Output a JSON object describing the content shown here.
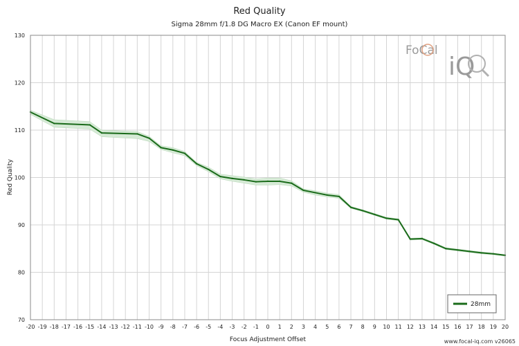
{
  "chart_data": {
    "type": "line",
    "title": "Red Quality",
    "subtitle": "Sigma 28mm f/1.8 DG Macro EX (Canon EF mount)",
    "xlabel": "Focus Adjustment Offset",
    "ylabel": "Red Quality",
    "xlim": [
      -20,
      20
    ],
    "ylim": [
      70,
      130
    ],
    "yticks": [
      70,
      80,
      90,
      100,
      110,
      120,
      130
    ],
    "xticks": [
      -20,
      -19,
      -18,
      -17,
      -16,
      -15,
      -14,
      -13,
      -12,
      -11,
      -10,
      -9,
      -8,
      -7,
      -6,
      -5,
      -4,
      -3,
      -2,
      -1,
      0,
      1,
      2,
      3,
      4,
      5,
      6,
      7,
      8,
      9,
      10,
      11,
      12,
      13,
      14,
      15,
      16,
      17,
      18,
      19,
      20
    ],
    "grid": true,
    "legend_position": "bottom-right",
    "series": [
      {
        "name": "28mm",
        "color": "#1a6b1a",
        "band_color": "#d6ead6",
        "x": [
          -20,
          -18,
          -15,
          -14,
          -11,
          -10,
          -9,
          -8,
          -7,
          -6,
          -5,
          -4,
          -3,
          -2,
          -1,
          0,
          1,
          2,
          3,
          4,
          5,
          6,
          7,
          8,
          9,
          10,
          11,
          12,
          13,
          14,
          15,
          16,
          17,
          18,
          19,
          20
        ],
        "values": [
          113.8,
          111.4,
          111.1,
          109.4,
          109.2,
          108.3,
          106.3,
          105.8,
          105.1,
          102.9,
          101.7,
          100.2,
          99.8,
          99.5,
          99.1,
          99.2,
          99.2,
          98.8,
          97.3,
          96.8,
          96.3,
          96.0,
          93.7,
          93.0,
          92.2,
          91.4,
          91.1,
          87.0,
          87.1,
          86.1,
          85.0,
          84.7,
          84.4,
          84.1,
          83.9,
          83.6
        ],
        "band_upper": [
          114.2,
          112.2,
          111.8,
          110.0,
          109.7,
          108.7,
          106.7,
          106.3,
          105.5,
          103.2,
          102.2,
          100.7,
          100.4,
          100.1,
          99.7,
          99.9,
          99.9,
          99.3,
          97.6,
          97.2,
          96.7,
          96.4,
          93.9,
          93.2,
          92.4,
          91.6,
          91.3,
          87.2,
          87.3,
          86.3,
          85.2,
          84.9,
          84.6,
          84.3,
          84.0,
          83.7
        ],
        "band_lower": [
          113.3,
          110.6,
          110.2,
          108.6,
          108.2,
          107.6,
          105.9,
          105.2,
          104.6,
          102.5,
          101.2,
          99.7,
          99.2,
          98.8,
          98.4,
          98.4,
          98.5,
          98.2,
          96.9,
          96.3,
          95.9,
          95.6,
          93.5,
          92.8,
          92.0,
          91.2,
          90.9,
          86.8,
          86.9,
          85.9,
          84.8,
          84.5,
          84.2,
          83.9,
          83.7,
          83.4
        ]
      }
    ]
  },
  "watermark": {
    "brand_top": "FoCal",
    "brand_bottom": "iQ",
    "footer": "www.focal-iq.com  v26065"
  }
}
